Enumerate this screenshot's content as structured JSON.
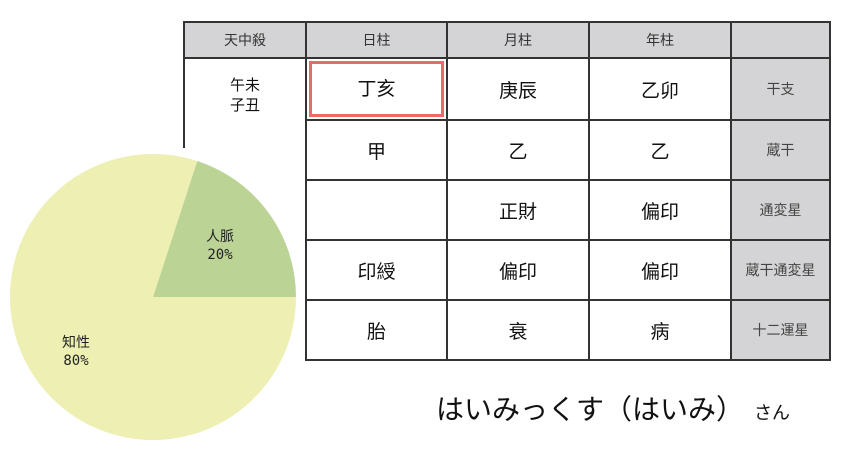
{
  "table": {
    "headers": [
      "天中殺",
      "日柱",
      "月柱",
      "年柱",
      ""
    ],
    "tenchusatsu": [
      "午未",
      "子丑"
    ],
    "rows": [
      {
        "cells": [
          "丁亥",
          "庚辰",
          "乙卯"
        ],
        "label": "干支"
      },
      {
        "cells": [
          "甲",
          "乙",
          "乙"
        ],
        "label": "蔵干"
      },
      {
        "cells": [
          "",
          "正財",
          "偏印"
        ],
        "label": "通変星"
      },
      {
        "cells": [
          "印綬",
          "偏印",
          "偏印"
        ],
        "label": "蔵干通変星"
      },
      {
        "cells": [
          "胎",
          "衰",
          "病"
        ],
        "label": "十二運星"
      }
    ],
    "highlight_color": "#e86a6a"
  },
  "chart_data": {
    "type": "pie",
    "slices": [
      {
        "label": "人脈",
        "value": 20,
        "value_label": "20%",
        "color": "#bcd396"
      },
      {
        "label": "知性",
        "value": 80,
        "value_label": "80%",
        "color": "#eeefb3"
      }
    ]
  },
  "name": {
    "main": "はいみっくす（はいみ）",
    "suffix": "さん"
  }
}
